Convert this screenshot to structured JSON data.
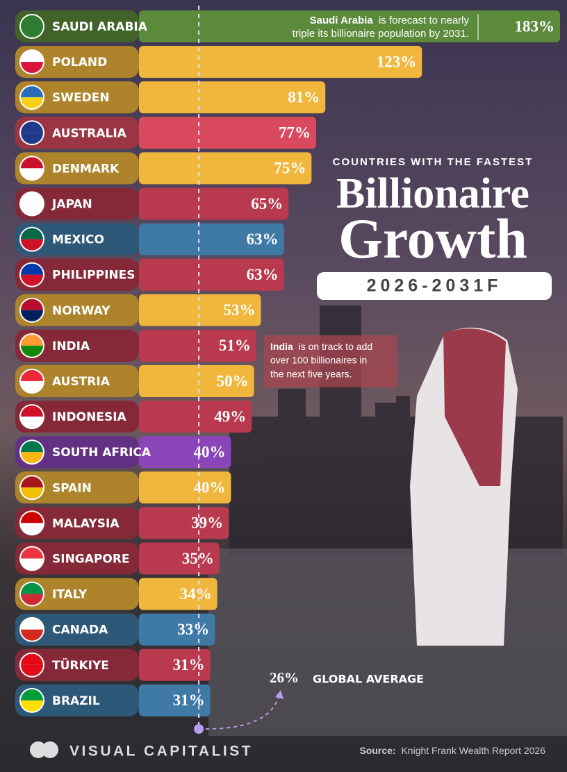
{
  "chart_data": {
    "type": "bar",
    "orientation": "horizontal",
    "kicker": "COUNTRIES WITH THE FASTEST",
    "title": "Billionaire",
    "title_2": "Growth",
    "subtitle": "2026-2031F",
    "categories": [
      "SAUDI ARABIA",
      "POLAND",
      "SWEDEN",
      "AUSTRALIA",
      "DENMARK",
      "JAPAN",
      "MEXICO",
      "PHILIPPINES",
      "NORWAY",
      "INDIA",
      "AUSTRIA",
      "INDONESIA",
      "SOUTH AFRICA",
      "SPAIN",
      "MALAYSIA",
      "SINGAPORE",
      "ITALY",
      "CANADA",
      "TÜRKIYE",
      "BRAZIL"
    ],
    "values": [
      183,
      123,
      81,
      77,
      75,
      65,
      63,
      63,
      53,
      51,
      50,
      49,
      40,
      40,
      39,
      35,
      34,
      33,
      31,
      31
    ],
    "value_labels": [
      "183%",
      "123%",
      "81%",
      "77%",
      "75%",
      "65%",
      "63%",
      "63%",
      "53%",
      "51%",
      "50%",
      "49%",
      "40%",
      "40%",
      "39%",
      "35%",
      "34%",
      "33%",
      "31%",
      "31%"
    ],
    "colors": [
      "#5a8a3a",
      "#f0b73c",
      "#f0b73c",
      "#d94a5e",
      "#f0b73c",
      "#b93a4e",
      "#3f7aa6",
      "#b93a4e",
      "#f0b73c",
      "#b93a4e",
      "#f0b73c",
      "#b93a4e",
      "#8a45b8",
      "#f0b73c",
      "#b93a4e",
      "#b93a4e",
      "#f0b73c",
      "#3f7aa6",
      "#b93a4e",
      "#3f7aa6"
    ],
    "xlim": [
      0,
      183
    ],
    "global_average": {
      "value": 26,
      "label": "26%",
      "text": "GLOBAL AVERAGE"
    },
    "annotations": [
      {
        "bold": "Saudi Arabia",
        "lines": [
          "is forecast to nearly",
          "triple its billionaire population by 2031."
        ]
      },
      {
        "bold": "India",
        "lines": [
          "is on track to add",
          "over 100 billionaires in",
          "the next five years."
        ]
      }
    ],
    "brand": "VISUAL CAPITALIST",
    "source_label": "Source:",
    "source": "Knight Frank Wealth Report 2026"
  }
}
